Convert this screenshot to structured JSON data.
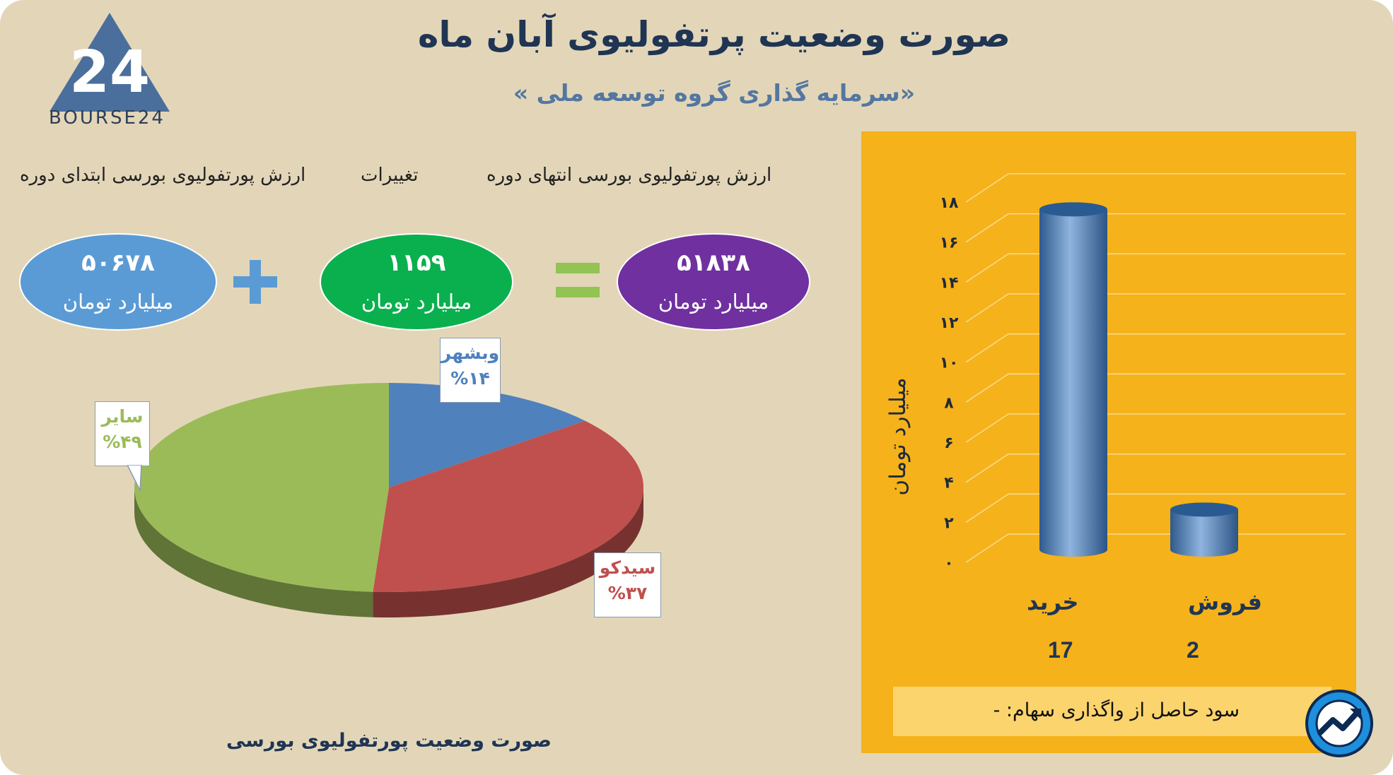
{
  "title": "صورت وضعیت پرتفولیوی آبان ماه",
  "subtitle": "«سرمایه گذاری گروه توسعه ملی »",
  "logo": {
    "text": "BOURSE24",
    "numeral": "24"
  },
  "summary": {
    "headers": {
      "end": "ارزش پورتفولیوی بورسی انتهای دوره",
      "change": "تغییرات",
      "start": "ارزش پورتفولیوی بورسی ابتدای دوره"
    },
    "start_value": "۵۰۶۷۸",
    "change_value": "۱۱۵۹",
    "end_value": "۵۱۸۳۸",
    "unit": "میلیارد تومان",
    "colors": {
      "start": "#5b9bd5",
      "change": "#0bb04e",
      "end": "#7030a0",
      "plus": "#5b9bd5",
      "equals": "#92c353"
    }
  },
  "chart_data": [
    {
      "type": "pie",
      "title": "صورت وضعیت پورتفولیوی بورسی",
      "slices": [
        {
          "label": "وبشهر",
          "value": 14,
          "display": "%۱۴",
          "color": "#4f81bd"
        },
        {
          "label": "سیدکو",
          "value": 37,
          "display": "%۳۷",
          "color": "#c0504d"
        },
        {
          "label": "سایر",
          "value": 49,
          "display": "%۴۹",
          "color": "#9bbb59"
        }
      ]
    },
    {
      "type": "bar",
      "categories": [
        "خرید",
        "فروش"
      ],
      "values": [
        17,
        2
      ],
      "value_labels": [
        "17",
        "2"
      ],
      "ylabel": "میلیارد تومان",
      "ylim": [
        0,
        18
      ],
      "yticks": [
        "۰",
        "۲",
        "۴",
        "۶",
        "۸",
        "۱۰",
        "۱۲",
        "۱۴",
        "۱۶",
        "۱۸"
      ],
      "grid": true,
      "bar_color": "#4a78a8"
    }
  ],
  "note": "سود حاصل از واگذاری سهام: -",
  "icons": {
    "logo": "bourse24-triangle-logo",
    "badge": "trend-arrow-badge-icon"
  }
}
